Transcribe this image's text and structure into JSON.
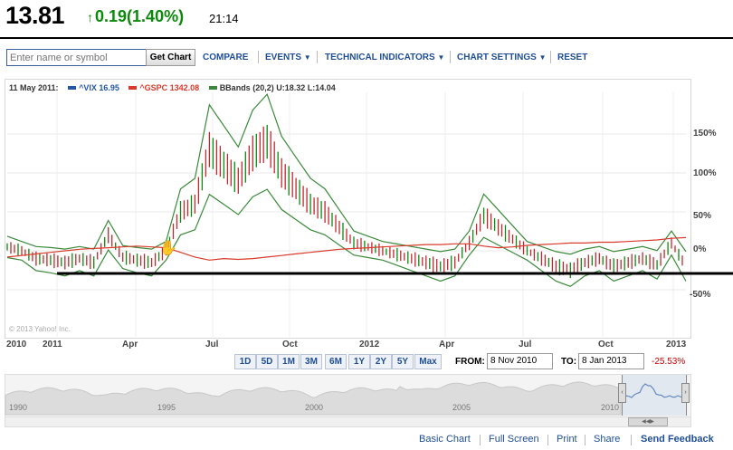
{
  "quote": {
    "price": "13.81",
    "change": "0.19",
    "change_pct": "(1.40%)",
    "time": "21:14",
    "up_color": "#0a8a0a"
  },
  "toolbar": {
    "search_placeholder": "Enter name or symbol",
    "get_chart_label": "Get Chart",
    "menu": [
      "COMPARE",
      "EVENTS",
      "TECHNICAL INDICATORS",
      "CHART SETTINGS",
      "RESET"
    ]
  },
  "legend": {
    "date": "11 May 2011:",
    "items": [
      {
        "label": "^VIX 16.95",
        "color": "#2457a8"
      },
      {
        "label": "^GSPC 1342.08",
        "color": "#d93a2b"
      },
      {
        "label": "BBands (20,2) U:18.32 L:14.04",
        "color": "#3a8a3a"
      }
    ]
  },
  "chart_data": {
    "type": "line",
    "x_ticks": [
      "2010",
      "2011",
      "Apr",
      "Jul",
      "Oct",
      "2012",
      "Apr",
      "Jul",
      "Oct",
      "2013"
    ],
    "y_ticks": [
      "150%",
      "100%",
      "50%",
      "0%",
      "-50%"
    ],
    "ylim": [
      -60,
      170
    ],
    "series": [
      {
        "name": "^VIX",
        "values": [
          5,
          0,
          -10,
          -12,
          -15,
          -10,
          -15,
          20,
          -8,
          -12,
          -15,
          0,
          50,
          60,
          130,
          110,
          90,
          125,
          140,
          100,
          80,
          60,
          50,
          30,
          10,
          5,
          0,
          -5,
          -10,
          -15,
          -20,
          -15,
          10,
          45,
          30,
          15,
          0,
          -10,
          -20,
          -25,
          -15,
          -10,
          -20,
          -15,
          -10,
          -18,
          10,
          -20
        ],
        "color": "#2d6a2d"
      },
      {
        "name": "^GSPC",
        "values": [
          -8,
          -6,
          -4,
          -2,
          0,
          2,
          3,
          4,
          5,
          6,
          5,
          4,
          -2,
          -8,
          -12,
          -10,
          -11,
          -10,
          -8,
          -6,
          -4,
          -2,
          0,
          2,
          3,
          4,
          5,
          6,
          7,
          8,
          8,
          9,
          9,
          6,
          4,
          5,
          7,
          8,
          9,
          10,
          10,
          11,
          11,
          12,
          13,
          14,
          16,
          17
        ],
        "color": "#d93a2b"
      }
    ]
  },
  "copyright": "© 2013 Yahoo! Inc.",
  "ranges": [
    "1D",
    "5D",
    "1M",
    "3M",
    "6M",
    "1Y",
    "2Y",
    "5Y",
    "Max"
  ],
  "date_range": {
    "from_label": "FROM:",
    "from_value": "8 Nov 2010",
    "to_label": "TO:",
    "to_value": "8 Jan 2013",
    "change_pct": "-25.53%"
  },
  "navigator": {
    "labels": [
      "1990",
      "1995",
      "2000",
      "2005",
      "2010"
    ]
  },
  "footer": [
    "Basic Chart",
    "Full Screen",
    "Print",
    "Share",
    "Send Feedback"
  ]
}
